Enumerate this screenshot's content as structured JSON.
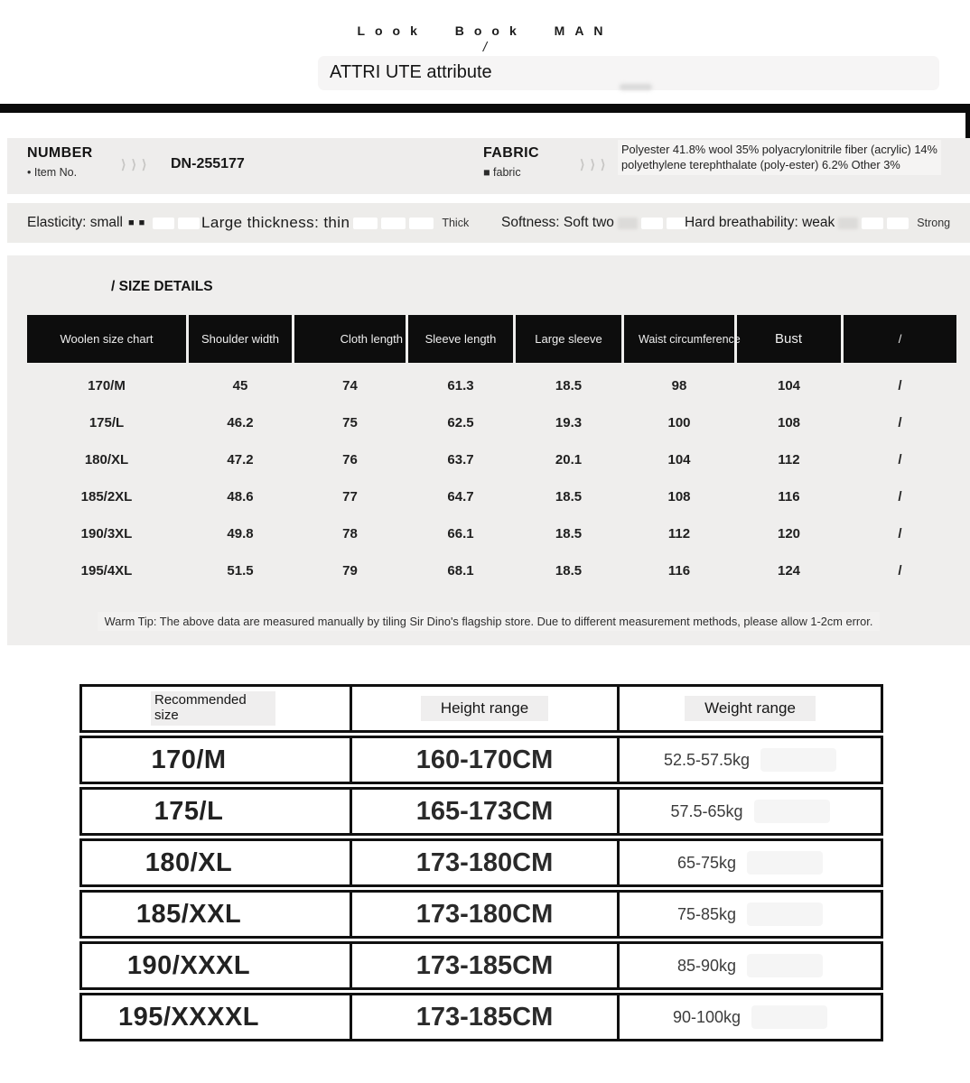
{
  "header": {
    "brand": "Look Book MAN",
    "slash": "/",
    "title": "ATTRI UTE attribute"
  },
  "info": {
    "number": {
      "label": "NUMBER",
      "sublabel": "• Item No.",
      "chevrons": "⟩⟩⟩",
      "value": "DN-255177"
    },
    "fabric": {
      "label": "FABRIC",
      "sublabel": "■ fabric",
      "chevrons": "⟩⟩⟩",
      "value": "Polyester 41.8% wool 35% polyacrylonitrile fiber (acrylic) 14% polyethylene terephthalate (poly-ester) 6.2% Other 3%"
    }
  },
  "properties": {
    "elasticity_label": "Elasticity: small",
    "elasticity_squares": "■■",
    "thickness_label": "Large thickness: thin",
    "thickness_max": "Thick",
    "softness_label": "Softness: Soft two",
    "breathability_label": "Hard breathability: weak",
    "breathability_max": "Strong"
  },
  "size_details": {
    "heading": "/ SIZE DETAILS",
    "columns": [
      "Woolen size chart",
      "Shoulder width",
      "Cloth length",
      "Sleeve length",
      "Large sleeve",
      "Waist circumference",
      "Bust",
      "/"
    ],
    "rows": [
      [
        "170/M",
        "45",
        "74",
        "61.3",
        "18.5",
        "98",
        "104",
        "/"
      ],
      [
        "175/L",
        "46.2",
        "75",
        "62.5",
        "19.3",
        "100",
        "108",
        "/"
      ],
      [
        "180/XL",
        "47.2",
        "76",
        "63.7",
        "20.1",
        "104",
        "112",
        "/"
      ],
      [
        "185/2XL",
        "48.6",
        "77",
        "64.7",
        "18.5",
        "108",
        "116",
        "/"
      ],
      [
        "190/3XL",
        "49.8",
        "78",
        "66.1",
        "18.5",
        "112",
        "120",
        "/"
      ],
      [
        "195/4XL",
        "51.5",
        "79",
        "68.1",
        "18.5",
        "116",
        "124",
        "/"
      ]
    ],
    "warm_tip": "Warm Tip: The above data are measured manually by tiling Sir Dino's flagship store. Due to different measurement methods, please allow 1-2cm error."
  },
  "recommend_table": {
    "columns": [
      "Recommended size",
      "Height range",
      "Weight range"
    ],
    "rows": [
      [
        "170/M",
        "160-170CM",
        "52.5-57.5kg"
      ],
      [
        "175/L",
        "165-173CM",
        "57.5-65kg"
      ],
      [
        "180/XL",
        "173-180CM",
        "65-75kg"
      ],
      [
        "185/XXL",
        "173-180CM",
        "75-85kg"
      ],
      [
        "190/XXXL",
        "173-185CM",
        "85-90kg"
      ],
      [
        "195/XXXXL",
        "173-185CM",
        "90-100kg"
      ]
    ]
  },
  "colors": {
    "panel_gray": "#eeedec",
    "table_header_black": "#0d0d0d",
    "bar_black": "#0b0b0b",
    "border_black": "#101010"
  }
}
